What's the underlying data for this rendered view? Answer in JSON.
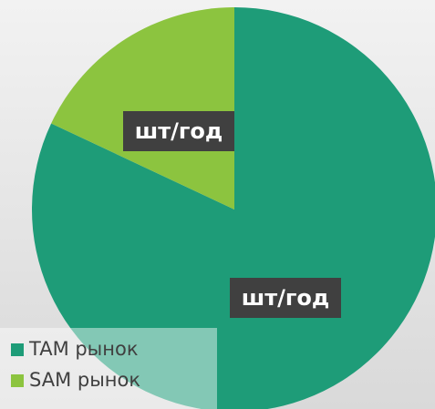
{
  "chart_data": {
    "type": "pie",
    "categories": [
      "TAM рынок",
      "SAM рынок"
    ],
    "values": [
      82,
      18
    ],
    "value_labels": [
      "шт/год",
      "шт/год"
    ],
    "colors": [
      "#1e9c78",
      "#8cc43f"
    ],
    "legend": "bottom-left"
  }
}
